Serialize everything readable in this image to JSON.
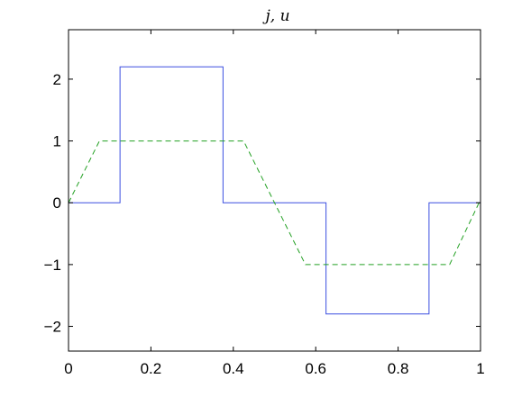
{
  "chart_data": {
    "type": "line",
    "title": "j, u",
    "xlabel": "",
    "ylabel": "",
    "xlim": [
      0,
      1
    ],
    "ylim": [
      -2.4,
      2.8
    ],
    "grid": false,
    "x_ticks": [
      0,
      0.2,
      0.4,
      0.6,
      0.8,
      1
    ],
    "x_tick_labels": [
      "0",
      "0.2",
      "0.4",
      "0.6",
      "0.8",
      "1"
    ],
    "y_ticks": [
      -2,
      -1,
      0,
      1,
      2
    ],
    "y_tick_labels": [
      "−2",
      "−1",
      "0",
      "1",
      "2"
    ],
    "series": [
      {
        "style": "solid",
        "color": "#3b4fe0",
        "x": [
          0,
          0.125,
          0.125,
          0.375,
          0.375,
          0.625,
          0.625,
          0.875,
          0.875,
          1
        ],
        "y": [
          0,
          0,
          2.2,
          2.2,
          0,
          0,
          -1.8,
          -1.8,
          0,
          0
        ]
      },
      {
        "style": "dashed",
        "color": "#22a022",
        "x": [
          0,
          0.075,
          0.425,
          0.575,
          0.925,
          1
        ],
        "y": [
          0,
          1,
          1,
          -1,
          -1,
          0.05
        ]
      }
    ]
  }
}
